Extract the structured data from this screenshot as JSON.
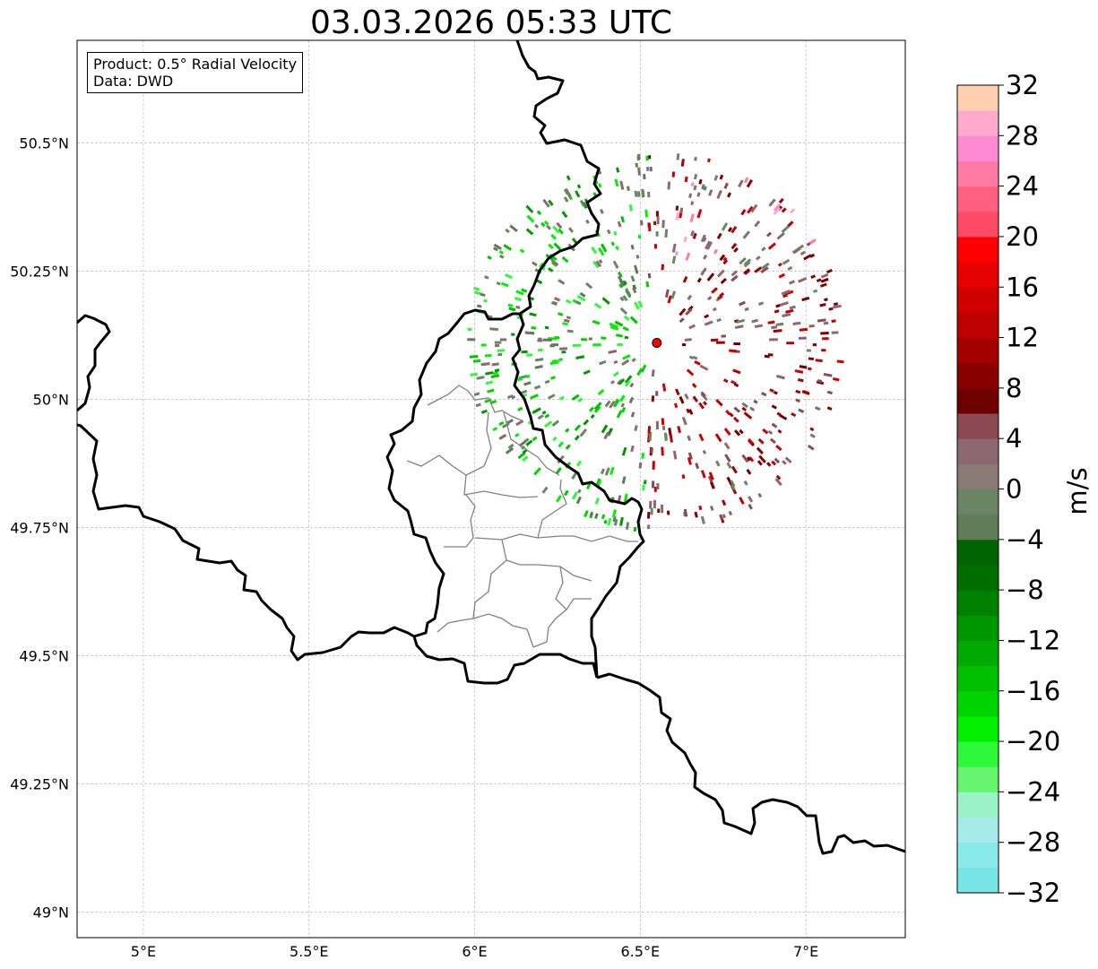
{
  "title": "03.03.2026 05:33 UTC",
  "info": {
    "product": "Product: 0.5° Radial Velocity",
    "data": "Data: DWD"
  },
  "map": {
    "lon_range": [
      4.8,
      7.3
    ],
    "lat_range": [
      48.95,
      50.7
    ],
    "lon_ticks": [
      {
        "value": 5.0,
        "label": "5°E"
      },
      {
        "value": 5.5,
        "label": "5.5°E"
      },
      {
        "value": 6.0,
        "label": "6°E"
      },
      {
        "value": 6.5,
        "label": "6.5°E"
      },
      {
        "value": 7.0,
        "label": "7°E"
      }
    ],
    "lat_ticks": [
      {
        "value": 49.0,
        "label": "49°N"
      },
      {
        "value": 49.25,
        "label": "49.25°N"
      },
      {
        "value": 49.5,
        "label": "49.5°N"
      },
      {
        "value": 49.75,
        "label": "49.75°N"
      },
      {
        "value": 50.0,
        "label": "50°N"
      },
      {
        "value": 50.25,
        "label": "50.25°N"
      },
      {
        "value": 50.5,
        "label": "50.5°N"
      }
    ],
    "radar_site": {
      "lon": 6.55,
      "lat": 50.11,
      "color": "#ff0000"
    }
  },
  "colorbar": {
    "label": "m/s",
    "min": -32,
    "max": 32,
    "tick_values": [
      32,
      28,
      24,
      20,
      16,
      12,
      8,
      4,
      0,
      -4,
      -8,
      -12,
      -16,
      -20,
      -24,
      -28,
      -32
    ],
    "tick_labels": [
      "32",
      "28",
      "24",
      "20",
      "16",
      "12",
      "8",
      "4",
      "0",
      "−4",
      "−8",
      "−12",
      "−16",
      "−20",
      "−24",
      "−28",
      "−32"
    ],
    "colors_bottom_to_top": [
      "#79e4e6",
      "#8ae9ea",
      "#a6eaea",
      "#9bf2c6",
      "#66f46f",
      "#2ef83a",
      "#00f000",
      "#00d400",
      "#00c000",
      "#00aa00",
      "#009600",
      "#008000",
      "#006d00",
      "#006400",
      "#5e7c57",
      "#6a8563",
      "#8a7a76",
      "#8d6872",
      "#8b4a52",
      "#6e0000",
      "#880000",
      "#a40000",
      "#bd0000",
      "#d10000",
      "#e60000",
      "#ff0000",
      "#ff4a66",
      "#ff6082",
      "#ff7aa4",
      "#ff8ad4",
      "#ffaacc",
      "#ffcfb0"
    ]
  }
}
